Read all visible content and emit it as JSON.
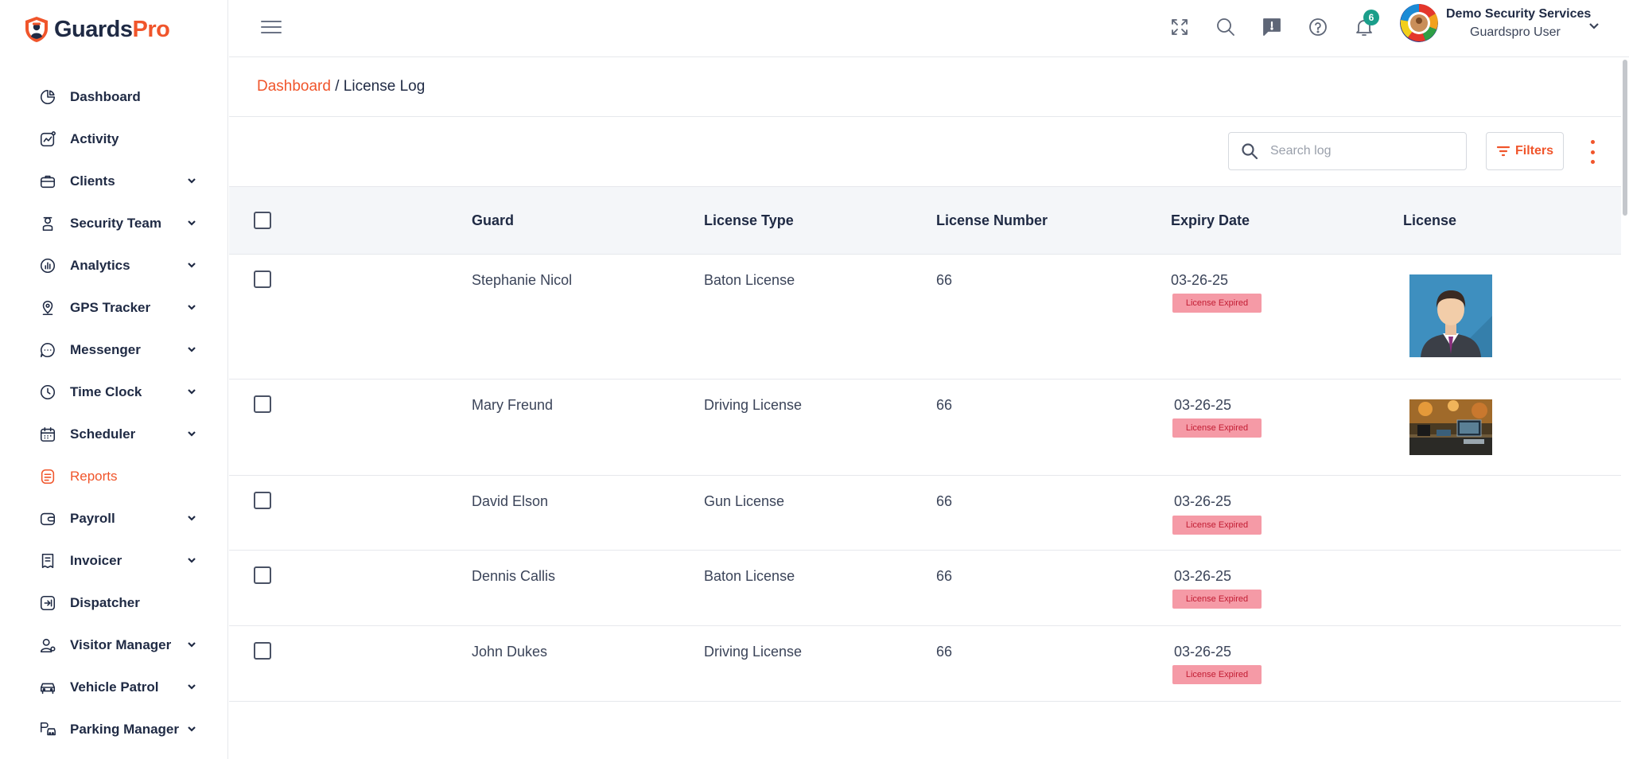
{
  "brand": {
    "name_part1": "Guards",
    "name_part2": "Pro",
    "accent": "#f0552b"
  },
  "sidebar": {
    "items": [
      {
        "label": "Dashboard",
        "icon": "dashboard-icon",
        "has_children": false,
        "active": false
      },
      {
        "label": "Activity",
        "icon": "activity-icon",
        "has_children": false,
        "active": false
      },
      {
        "label": "Clients",
        "icon": "clients-icon",
        "has_children": true,
        "active": false
      },
      {
        "label": "Security Team",
        "icon": "security-team-icon",
        "has_children": true,
        "active": false
      },
      {
        "label": "Analytics",
        "icon": "analytics-icon",
        "has_children": true,
        "active": false
      },
      {
        "label": "GPS Tracker",
        "icon": "gps-tracker-icon",
        "has_children": true,
        "active": false
      },
      {
        "label": "Messenger",
        "icon": "messenger-icon",
        "has_children": true,
        "active": false
      },
      {
        "label": "Time Clock",
        "icon": "time-clock-icon",
        "has_children": true,
        "active": false
      },
      {
        "label": "Scheduler",
        "icon": "scheduler-icon",
        "has_children": true,
        "active": false
      },
      {
        "label": "Reports",
        "icon": "reports-icon",
        "has_children": false,
        "active": true
      },
      {
        "label": "Payroll",
        "icon": "payroll-icon",
        "has_children": true,
        "active": false
      },
      {
        "label": "Invoicer",
        "icon": "invoicer-icon",
        "has_children": true,
        "active": false
      },
      {
        "label": "Dispatcher",
        "icon": "dispatcher-icon",
        "has_children": false,
        "active": false
      },
      {
        "label": "Visitor Manager",
        "icon": "visitor-manager-icon",
        "has_children": true,
        "active": false
      },
      {
        "label": "Vehicle Patrol",
        "icon": "vehicle-patrol-icon",
        "has_children": true,
        "active": false
      },
      {
        "label": "Parking Manager",
        "icon": "parking-manager-icon",
        "has_children": true,
        "active": false
      }
    ]
  },
  "topbar": {
    "notification_count": "6",
    "user_company": "Demo Security Services",
    "user_name": "Guardspro User"
  },
  "breadcrumb": {
    "link": "Dashboard",
    "separator": " / ",
    "current": "License Log"
  },
  "toolbar": {
    "search_placeholder": "Search log",
    "search_value": "",
    "filters_label": "Filters"
  },
  "table": {
    "columns": [
      "Guard",
      "License Type",
      "License Number",
      "Expiry Date",
      "License"
    ],
    "rows": [
      {
        "guard": "Stephanie Nicol",
        "license_type": "Baton License",
        "license_number": "66",
        "expiry_date": "03-26-25",
        "status": "License Expired",
        "image": "avatar-portrait"
      },
      {
        "guard": "Mary Freund",
        "license_type": "Driving License",
        "license_number": "66",
        "expiry_date": "03-26-25",
        "status": "License Expired",
        "image": "desk-photo"
      },
      {
        "guard": "David Elson",
        "license_type": "Gun License",
        "license_number": "66",
        "expiry_date": "03-26-25",
        "status": "License Expired",
        "image": ""
      },
      {
        "guard": "Dennis Callis",
        "license_type": "Baton License",
        "license_number": "66",
        "expiry_date": "03-26-25",
        "status": "License Expired",
        "image": ""
      },
      {
        "guard": "John Dukes",
        "license_type": "Driving License",
        "license_number": "66",
        "expiry_date": "03-26-25",
        "status": "License Expired",
        "image": ""
      }
    ]
  }
}
